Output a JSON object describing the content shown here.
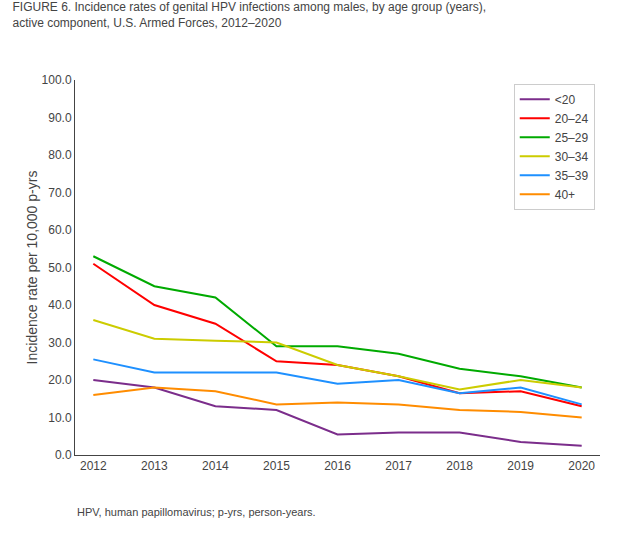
{
  "chart_data": {
    "type": "line",
    "title": "FIGURE 6. Incidence rates of genital HPV infections among males, by age group (years),\nactive component, U.S. Armed Forces, 2012–2020",
    "y_label": "Incidence rate per 10,000 p-yrs",
    "annotations": [
      "HPV, human papillomavirus; p-yrs, person-years."
    ],
    "x": [
      2012,
      2013,
      2014,
      2015,
      2016,
      2017,
      2018,
      2019,
      2020
    ],
    "series": [
      {
        "name": "<20",
        "color": "#7B2D8B",
        "values": [
          20.0,
          18.0,
          13.0,
          12.0,
          5.5,
          6.0,
          6.0,
          3.5,
          2.5
        ]
      },
      {
        "name": "20–24",
        "color": "#FF0000",
        "values": [
          51.0,
          40.0,
          35.0,
          25.0,
          24.0,
          21.0,
          16.5,
          17.0,
          13.0
        ]
      },
      {
        "name": "25–29",
        "color": "#00AA00",
        "values": [
          53.0,
          45.0,
          42.0,
          29.0,
          29.0,
          27.0,
          23.0,
          21.0,
          18.0
        ]
      },
      {
        "name": "30–34",
        "color": "#CCCC00",
        "values": [
          36.0,
          31.0,
          30.5,
          30.0,
          24.0,
          21.0,
          17.5,
          20.0,
          18.0
        ]
      },
      {
        "name": "35–39",
        "color": "#1E90FF",
        "values": [
          25.5,
          22.0,
          22.0,
          22.0,
          19.0,
          20.0,
          16.5,
          18.0,
          13.5
        ]
      },
      {
        "name": "40+",
        "color": "#FF8C00",
        "values": [
          16.0,
          18.0,
          17.0,
          13.5,
          14.0,
          13.5,
          12.0,
          11.5,
          10.0
        ]
      }
    ],
    "xlim": [
      2011.7,
      2020.3
    ],
    "xticks": [
      2012,
      2013,
      2014,
      2015,
      2016,
      2017,
      2018,
      2019,
      2020
    ],
    "ylim": [
      0,
      100
    ],
    "yticks": [
      {
        "value": 0,
        "label": "0.0"
      },
      {
        "value": 10,
        "label": "10.0"
      },
      {
        "value": 20,
        "label": "20.0"
      },
      {
        "value": 30,
        "label": "30.0"
      },
      {
        "value": 40,
        "label": "40.0"
      },
      {
        "value": 50,
        "label": "50.0"
      },
      {
        "value": 60,
        "label": "60.0"
      },
      {
        "value": 70,
        "label": "70.0"
      },
      {
        "value": 80,
        "label": "80.0"
      },
      {
        "value": 90,
        "label": "90.0"
      },
      {
        "value": 100,
        "label": "100.0"
      }
    ],
    "grid": false,
    "legend": "upper right"
  }
}
